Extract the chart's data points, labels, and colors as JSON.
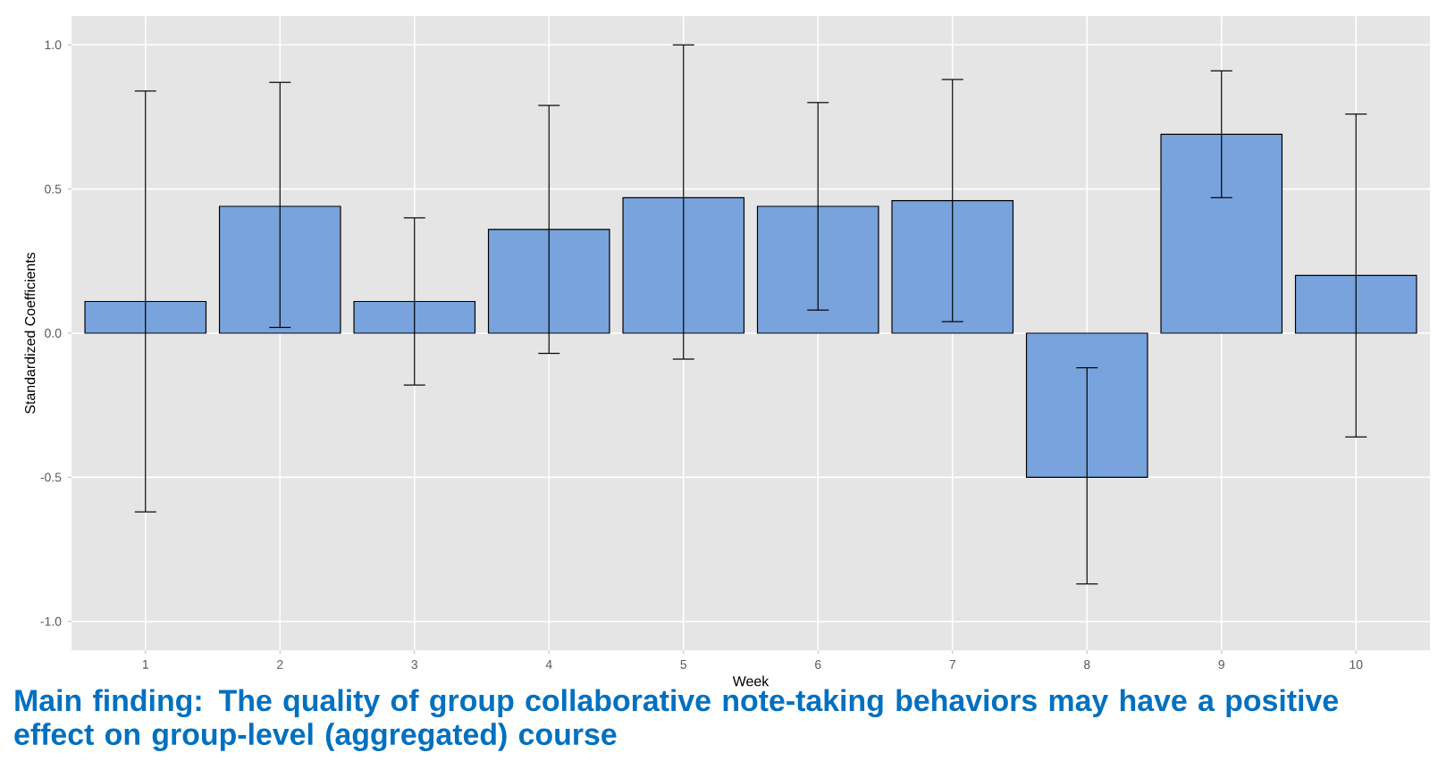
{
  "chart_data": {
    "type": "bar",
    "xlabel": "Week",
    "ylabel": "Standardized Coefficients",
    "categories": [
      "1",
      "2",
      "3",
      "4",
      "5",
      "6",
      "7",
      "8",
      "9",
      "10"
    ],
    "values": [
      0.11,
      0.44,
      0.11,
      0.36,
      0.47,
      0.44,
      0.46,
      -0.5,
      0.69,
      0.2
    ],
    "color": "#79a3dc",
    "errors": [
      [
        -0.62,
        0.84
      ],
      [
        0.02,
        0.87
      ],
      [
        -0.18,
        0.4
      ],
      [
        -0.07,
        0.79
      ],
      [
        -0.09,
        1.0
      ],
      [
        0.08,
        0.8
      ],
      [
        0.04,
        0.88
      ],
      [
        -0.87,
        -0.12
      ],
      [
        0.47,
        0.91
      ],
      [
        -0.36,
        0.76
      ]
    ],
    "ylim": [
      -1.1,
      1.1
    ],
    "yticks": [
      {
        "value": -1,
        "label": "-1.0"
      },
      {
        "value": -0.5,
        "label": "-0.5"
      },
      {
        "value": 0,
        "label": "0.0"
      },
      {
        "value": 0.5,
        "label": "0.5"
      },
      {
        "value": 1,
        "label": "1.0"
      }
    ],
    "grid": true,
    "annotations": [
      "Main finding: The quality of group collaborative note-taking behaviors may have a positive effect on group-level (aggregated) course"
    ]
  }
}
